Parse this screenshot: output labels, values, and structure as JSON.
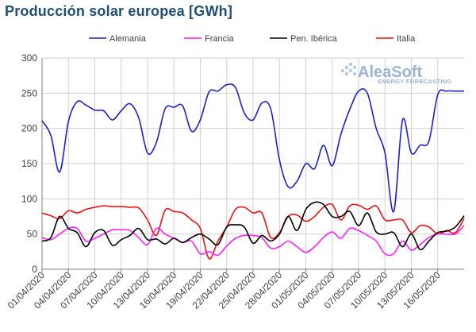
{
  "colors": {
    "alemania": "#1f1fcc",
    "francia": "#ff20ff",
    "iberica": "#000000",
    "italia": "#ee1111",
    "grid": "#d0d0d0",
    "title": "#1f4e79",
    "logo": "#4a78b8"
  },
  "chart_data": {
    "type": "line",
    "title": "Producción solar europea [GWh]",
    "xlabel": "",
    "ylabel": "",
    "ylim": [
      0,
      300
    ],
    "yticks": [
      0,
      50,
      100,
      150,
      200,
      250,
      300
    ],
    "grid": true,
    "legend_position": "top",
    "watermark": {
      "brand": "AleaSoft",
      "tagline": "ENERGY FORECASTING"
    },
    "x_tick_labels": [
      "01/04/2020",
      "04/04/2020",
      "07/04/2020",
      "10/04/2020",
      "13/04/2020",
      "16/04/2020",
      "19/04/2020",
      "22/04/2020",
      "25/04/2020",
      "28/04/2020",
      "01/05/2020",
      "04/05/2020",
      "07/05/2020",
      "10/05/2020",
      "13/05/2020",
      "16/05/2020"
    ],
    "x": [
      "01/04/2020",
      "02/04/2020",
      "03/04/2020",
      "04/04/2020",
      "05/04/2020",
      "06/04/2020",
      "07/04/2020",
      "08/04/2020",
      "09/04/2020",
      "10/04/2020",
      "11/04/2020",
      "12/04/2020",
      "13/04/2020",
      "14/04/2020",
      "15/04/2020",
      "16/04/2020",
      "17/04/2020",
      "18/04/2020",
      "19/04/2020",
      "20/04/2020",
      "21/04/2020",
      "22/04/2020",
      "23/04/2020",
      "24/04/2020",
      "25/04/2020",
      "26/04/2020",
      "27/04/2020",
      "28/04/2020",
      "29/04/2020",
      "30/04/2020",
      "01/05/2020",
      "02/05/2020",
      "03/05/2020",
      "04/05/2020",
      "05/05/2020",
      "06/05/2020",
      "07/05/2020",
      "08/05/2020",
      "09/05/2020",
      "10/05/2020",
      "11/05/2020",
      "12/05/2020",
      "13/05/2020",
      "14/05/2020",
      "15/05/2020",
      "16/05/2020",
      "17/05/2020",
      "18/05/2020",
      "19/05/2020"
    ],
    "series": [
      {
        "name": "Alemania",
        "color_key": "alemania",
        "values": [
          211,
          190,
          138,
          210,
          238,
          233,
          226,
          225,
          212,
          225,
          235,
          215,
          165,
          180,
          228,
          230,
          232,
          196,
          212,
          252,
          253,
          262,
          258,
          222,
          212,
          236,
          228,
          155,
          117,
          125,
          150,
          143,
          176,
          147,
          192,
          227,
          253,
          250,
          200,
          165,
          82,
          212,
          165,
          176,
          182,
          248,
          253,
          253,
          253
        ]
      },
      {
        "name": "Francia",
        "color_key": "francia",
        "values": [
          45,
          42,
          50,
          58,
          58,
          40,
          44,
          50,
          56,
          56,
          55,
          45,
          35,
          58,
          50,
          44,
          38,
          40,
          22,
          25,
          20,
          33,
          44,
          48,
          48,
          45,
          30,
          32,
          40,
          32,
          24,
          32,
          45,
          53,
          44,
          58,
          55,
          48,
          40,
          22,
          22,
          40,
          27,
          35,
          45,
          50,
          50,
          50,
          62
        ]
      },
      {
        "name": "Pen. Ibérica",
        "color_key": "iberica",
        "values": [
          40,
          45,
          75,
          58,
          52,
          32,
          52,
          55,
          34,
          42,
          48,
          58,
          42,
          43,
          36,
          44,
          38,
          45,
          50,
          43,
          35,
          60,
          63,
          60,
          37,
          48,
          40,
          50,
          75,
          55,
          85,
          95,
          92,
          75,
          75,
          82,
          62,
          80,
          53,
          50,
          52,
          32,
          50,
          28,
          40,
          52,
          54,
          60,
          76
        ]
      },
      {
        "name": "Italia",
        "color_key": "italia",
        "values": [
          80,
          76,
          72,
          83,
          80,
          85,
          88,
          90,
          89,
          89,
          88,
          87,
          70,
          48,
          84,
          82,
          80,
          70,
          58,
          15,
          40,
          60,
          85,
          88,
          80,
          80,
          45,
          52,
          75,
          77,
          68,
          75,
          88,
          92,
          70,
          90,
          91,
          85,
          90,
          70,
          70,
          70,
          52,
          62,
          60,
          50,
          55,
          52,
          72
        ]
      }
    ]
  }
}
